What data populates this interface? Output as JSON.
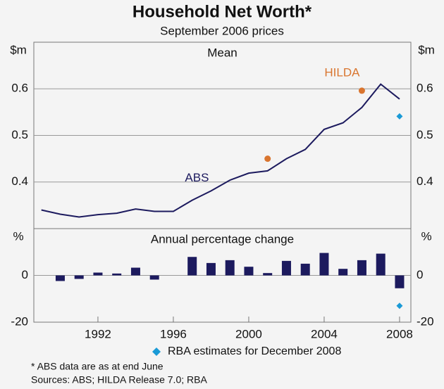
{
  "title": "Household Net Worth*",
  "subtitle": "September 2006 prices",
  "legend": {
    "label": "RBA estimates for December 2008",
    "color": "#1a9ad6"
  },
  "notes": [
    "*    ABS data are as at end June",
    "Sources: ABS; HILDA Release 7.0; RBA"
  ],
  "chart_data": [
    {
      "type": "line",
      "title": "Mean",
      "y_unit": "$m",
      "x": [
        1989,
        1990,
        1991,
        1992,
        1993,
        1994,
        1995,
        1996,
        1997,
        1998,
        1999,
        2000,
        2001,
        2002,
        2003,
        2004,
        2005,
        2006,
        2007,
        2008
      ],
      "xlim": [
        1988.6,
        2008.6
      ],
      "ylim": [
        0.3,
        0.7
      ],
      "yticks": [
        0.4,
        0.5,
        0.6
      ],
      "grid": true,
      "series": [
        {
          "name": "ABS",
          "color": "#1c1a5e",
          "values": [
            0.34,
            0.331,
            0.325,
            0.33,
            0.333,
            0.342,
            0.337,
            0.337,
            0.361,
            0.381,
            0.404,
            0.419,
            0.424,
            0.45,
            0.47,
            0.513,
            0.527,
            0.56,
            0.61,
            0.578
          ]
        },
        {
          "name": "HILDA",
          "color": "#d9752f",
          "marker": "circle",
          "values": [
            null,
            null,
            null,
            null,
            null,
            null,
            null,
            null,
            null,
            null,
            null,
            null,
            0.45,
            null,
            null,
            null,
            null,
            0.596,
            null,
            null
          ]
        },
        {
          "color": "#1a9ad6",
          "marker": "diamond",
          "values": [
            null,
            null,
            null,
            null,
            null,
            null,
            null,
            null,
            null,
            null,
            null,
            null,
            null,
            null,
            null,
            null,
            null,
            null,
            null,
            0.541
          ]
        }
      ]
    },
    {
      "type": "bar",
      "title": "Annual percentage change",
      "y_unit": "%",
      "x": [
        1989,
        1990,
        1991,
        1992,
        1993,
        1994,
        1995,
        1996,
        1997,
        1998,
        1999,
        2000,
        2001,
        2002,
        2003,
        2004,
        2005,
        2006,
        2007,
        2008
      ],
      "xlim": [
        1988.6,
        2008.6
      ],
      "xticks": [
        1992,
        1996,
        2000,
        2004,
        2008
      ],
      "ylim": [
        -20,
        20
      ],
      "yticks": [
        -20,
        0
      ],
      "grid": true,
      "series": [
        {
          "color": "#1c1a5e",
          "values": [
            null,
            -2.4,
            -1.5,
            1.2,
            0.8,
            3.3,
            -1.8,
            0,
            7.9,
            5.3,
            6.5,
            3.7,
            1.0,
            6.2,
            5.0,
            9.6,
            2.8,
            6.5,
            9.3,
            -5.5
          ]
        },
        {
          "color": "#1a9ad6",
          "marker": "diamond",
          "values": [
            null,
            null,
            null,
            null,
            null,
            null,
            null,
            null,
            null,
            null,
            null,
            null,
            null,
            null,
            null,
            null,
            null,
            null,
            null,
            -13
          ]
        }
      ]
    }
  ]
}
